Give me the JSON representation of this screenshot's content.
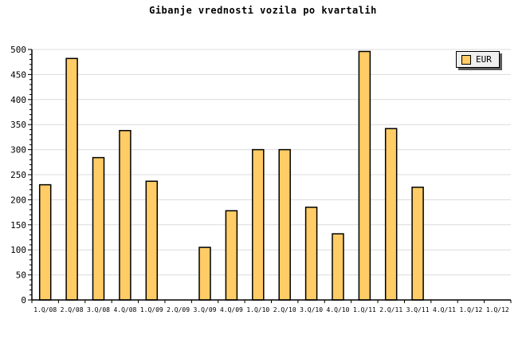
{
  "chart_data": {
    "type": "bar",
    "title": "Gibanje vrednosti vozila po kvartalih",
    "categories": [
      "1.Q/08",
      "2.Q/08",
      "3.Q/08",
      "4.Q/08",
      "1.Q/09",
      "2.Q/09",
      "3.Q/09",
      "4.Q/09",
      "1.Q/10",
      "2.Q/10",
      "3.Q/10",
      "4.Q/10",
      "1.Q/11",
      "2.Q/11",
      "3.Q/11",
      "4.Q/11",
      "1.Q/12",
      "1.Q/12"
    ],
    "series": [
      {
        "name": "EUR",
        "values": [
          230,
          482,
          284,
          338,
          237,
          0,
          105,
          178,
          300,
          300,
          185,
          132,
          496,
          342,
          225,
          0,
          0,
          0
        ]
      }
    ],
    "xlabel": "",
    "ylabel": "",
    "ylim": [
      0,
      500
    ],
    "y_major_step": 50,
    "y_minor_step": 10,
    "grid": true,
    "legend_position": "top-right",
    "colors": {
      "bar_fill": "#FFCC66",
      "bar_border": "#000000",
      "gridline": "#DCDCDC",
      "axis": "#000000",
      "text": "#000000",
      "legend_bg": "#EFEFEF",
      "legend_shadow": "#5A5A5A",
      "background": "#FFFFFF"
    }
  },
  "legend": {
    "label": "EUR"
  }
}
